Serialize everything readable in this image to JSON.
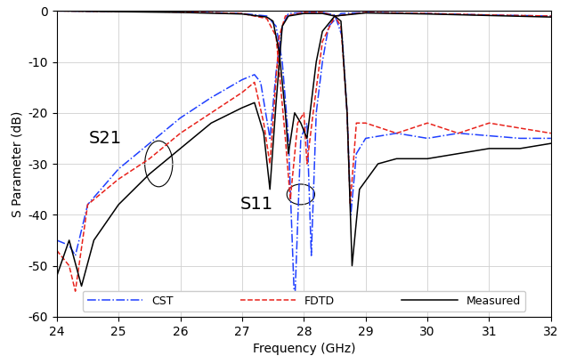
{
  "chart_data": {
    "type": "line",
    "xlabel": "Frequency (GHz)",
    "ylabel": "S Parameter (dB)",
    "xlim": [
      24,
      32
    ],
    "xticks": [
      24,
      25,
      26,
      27,
      28,
      29,
      30,
      31,
      32
    ],
    "ylim": [
      -60,
      0
    ],
    "yticks": [
      -60,
      -50,
      -40,
      -30,
      -20,
      -10,
      0
    ],
    "grid": true,
    "legend": "lower center",
    "annotations": [
      "S21",
      "S11"
    ],
    "series": [
      {
        "name": "CST",
        "color": "#1f3fff",
        "line_style": "dashdot",
        "S21": {
          "x": [
            24,
            24.2,
            24.3,
            24.5,
            25,
            25.5,
            26,
            26.5,
            27,
            27.2,
            27.3,
            27.45,
            27.55,
            27.65,
            27.75,
            28.0,
            28.3,
            28.5,
            28.62,
            28.7,
            28.76,
            28.85,
            29,
            29.5,
            30,
            30.5,
            31,
            31.5,
            32
          ],
          "values": [
            -45,
            -46,
            -48,
            -38,
            -31,
            -26,
            -21,
            -17,
            -13.5,
            -12.5,
            -14,
            -25,
            -12,
            -3,
            -0.5,
            -0.3,
            -0.3,
            -0.8,
            -5,
            -20,
            -40,
            -28,
            -25,
            -24,
            -25,
            -24,
            -24.5,
            -25,
            -25
          ]
        },
        "S11": {
          "x": [
            24,
            26,
            27,
            27.4,
            27.55,
            27.65,
            27.75,
            27.85,
            27.95,
            28.05,
            28.12,
            28.2,
            28.3,
            28.4,
            28.6,
            29,
            30,
            31,
            32
          ],
          "values": [
            0,
            -0.2,
            -0.5,
            -1,
            -3,
            -10,
            -25,
            -58,
            -25,
            -22,
            -48,
            -20,
            -10,
            -3,
            -0.5,
            -0.3,
            -0.5,
            -0.8,
            -1
          ]
        }
      },
      {
        "name": "FDTD",
        "color": "#e8221b",
        "line_style": "dashed",
        "S21": {
          "x": [
            24,
            24.2,
            24.3,
            24.5,
            25,
            25.5,
            26,
            26.5,
            27,
            27.2,
            27.35,
            27.45,
            27.6,
            27.7,
            28.0,
            28.3,
            28.5,
            28.6,
            28.7,
            28.75,
            28.85,
            29,
            29.5,
            30,
            30.5,
            31,
            31.5,
            32
          ],
          "values": [
            -47,
            -50,
            -55,
            -38,
            -33,
            -29,
            -24,
            -20,
            -16,
            -14,
            -22,
            -30,
            -5,
            -1,
            -0.3,
            -0.3,
            -1,
            -3,
            -20,
            -38,
            -22,
            -22,
            -24,
            -22,
            -24,
            -22,
            -23,
            -24
          ]
        },
        "S11": {
          "x": [
            24,
            26,
            27,
            27.4,
            27.55,
            27.7,
            27.78,
            27.9,
            28.0,
            28.05,
            28.15,
            28.3,
            28.5,
            29,
            30,
            31,
            32
          ],
          "values": [
            0,
            -0.2,
            -0.5,
            -1.5,
            -5,
            -25,
            -37,
            -22,
            -20,
            -30,
            -20,
            -6,
            -1,
            -0.3,
            -0.5,
            -0.8,
            -1
          ]
        }
      },
      {
        "name": "Measured",
        "color": "#000000",
        "line_style": "solid",
        "S21": {
          "x": [
            24,
            24.2,
            24.4,
            24.6,
            25,
            25.5,
            26,
            26.5,
            27,
            27.2,
            27.35,
            27.45,
            27.55,
            27.65,
            27.75,
            28.0,
            28.3,
            28.5,
            28.6,
            28.7,
            28.78,
            28.9,
            29.2,
            29.5,
            30,
            30.5,
            31,
            31.5,
            32
          ],
          "values": [
            -52,
            -45,
            -54,
            -45,
            -38,
            -32,
            -27,
            -22,
            -19,
            -18,
            -24,
            -35,
            -18,
            -3,
            -1,
            -0.5,
            -0.5,
            -1,
            -2,
            -20,
            -50,
            -35,
            -30,
            -29,
            -29,
            -28,
            -27,
            -27,
            -26
          ]
        },
        "S11": {
          "x": [
            24,
            26,
            27,
            27.4,
            27.5,
            27.6,
            27.7,
            27.75,
            27.85,
            27.95,
            28.05,
            28.1,
            28.2,
            28.3,
            28.5,
            29,
            30,
            31,
            32
          ],
          "values": [
            0,
            -0.3,
            -0.6,
            -1.2,
            -2,
            -8,
            -20,
            -28,
            -20,
            -22,
            -25,
            -20,
            -10,
            -4,
            -1,
            -0.4,
            -0.6,
            -0.9,
            -1.2
          ]
        }
      }
    ]
  }
}
